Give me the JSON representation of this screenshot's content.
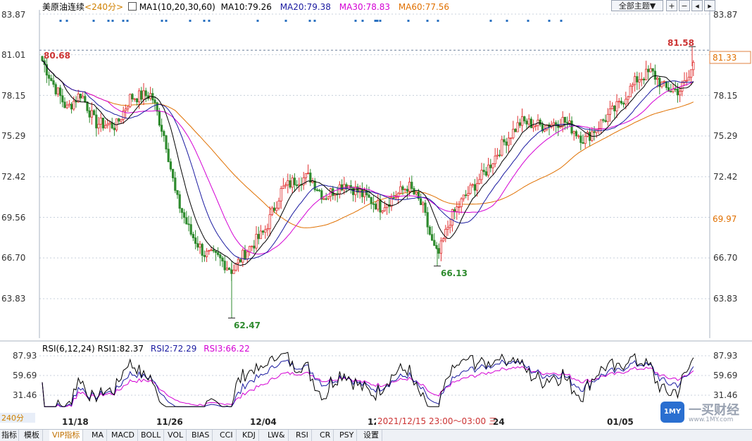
{
  "title": "美原油连续",
  "period": "240分",
  "ma_label": "MA1(10,20,30,60)",
  "ma_values": [
    {
      "label": "MA10:79.26",
      "color": "#000000"
    },
    {
      "label": "MA20:79.38",
      "color": "#1a1aa0"
    },
    {
      "label": "MA30:78.83",
      "color": "#d400d4"
    },
    {
      "label": "MA60:77.56",
      "color": "#e07000"
    }
  ],
  "theme_button": "全部主题▼",
  "rsi_label": "RSI(6,12,24)",
  "rsi_values": [
    {
      "label": "RSI1:82.37",
      "color": "#000000"
    },
    {
      "label": "RSI2:72.29",
      "color": "#1a1aa0"
    },
    {
      "label": "RSI3:66.22",
      "color": "#d400d4"
    }
  ],
  "rsi_ticks": [
    "87.93",
    "59.69",
    "31.46"
  ],
  "tooltip_time": "2021/12/15 23:00～03:00 三",
  "watermark": "一买财经",
  "watermark_sub": "www.1MY.com",
  "price_tags": {
    "current": "81.33",
    "ma60": "69.97"
  },
  "tabs": [
    "指标",
    "模板",
    "VIP指标",
    "MA",
    "MACD",
    "BOLL",
    "VOL",
    "BIAS",
    "CCI",
    "KDJ",
    "LW&",
    "RSI",
    "CR",
    "PSY",
    "设置"
  ],
  "colors": {
    "up": "#e03030",
    "down": "#2e8b2e",
    "grid": "#c8d0dc",
    "ma10": "#000000",
    "ma20": "#1a1aa0",
    "ma30": "#d400d4",
    "ma60": "#e07000",
    "signal": "#2a70c0"
  },
  "chart_data": {
    "type": "candlestick",
    "y_ticks": [
      83.87,
      81.01,
      78.15,
      75.29,
      72.42,
      69.56,
      66.7,
      63.83
    ],
    "x_labels": [
      "11/18",
      "11/26",
      "12/04",
      "12/1",
      "24",
      "01/05"
    ],
    "annotations": {
      "high": "81.58",
      "low1": "62.47",
      "low2": "66.13",
      "start": "80.68"
    },
    "candles_source": "random-walk approximation of visible bars",
    "rsi_range": [
      31.46,
      87.93
    ]
  }
}
